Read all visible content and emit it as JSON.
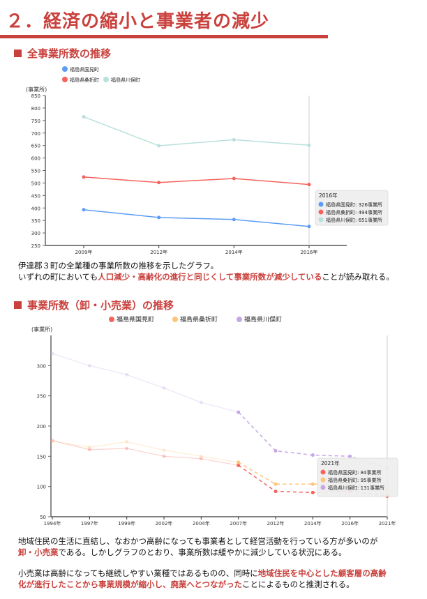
{
  "title": "２．経済の縮小と事業者の減少",
  "section1": {
    "heading": "全事業所数の推移",
    "para": [
      "伊達郡３町の全業種の事業所数の推移を示したグラフ。",
      "いずれの町においても",
      "人口減少・高齢化の進行と同じくして事業所数が減少している",
      "ことが読み取れる。"
    ]
  },
  "section2": {
    "heading": "事業所数（卸・小売業）の推移",
    "para1": [
      "地域住民の生活に直結し、なおかつ高齢になっても事業者として経営活動を行っている方が多いのが",
      "卸・小売業",
      "である。しかしグラフのとおり、事業所数は緩やかに減少している状況にある。"
    ],
    "para2": [
      "小売業は高齢になっても継続しやすい業種ではあるものの、同時に",
      "地域住民を中心とした顧客層の高齢",
      "化が進行したことから事業規模が縮小し、廃業へとつながった",
      "ことによるものと推測される。"
    ]
  },
  "chart_data": [
    {
      "type": "line",
      "ylabel": "(事業所)",
      "ylim": [
        250,
        850
      ],
      "yticks": [
        250,
        300,
        350,
        400,
        450,
        500,
        550,
        600,
        650,
        700,
        750,
        800,
        850
      ],
      "categories": [
        "2009年",
        "2012年",
        "2014年",
        "2016年"
      ],
      "series": [
        {
          "name": "福島県国見町",
          "color": "#5b9cf6",
          "values": [
            393,
            362,
            354,
            326
          ]
        },
        {
          "name": "福島県桑折町",
          "color": "#f7625c",
          "values": [
            524,
            502,
            518,
            494
          ]
        },
        {
          "name": "福島県川俣町",
          "color": "#b9e0dc",
          "values": [
            765,
            649,
            673,
            651
          ]
        }
      ],
      "tooltip": {
        "title": "2016年",
        "rows": [
          "福島県国見町: 326事業所",
          "福島県桑折町: 494事業所",
          "福島県川俣町: 651事業所"
        ]
      },
      "legend": "top-left"
    },
    {
      "type": "line",
      "ylabel": "(事業所)",
      "ylim": [
        50,
        350
      ],
      "yticks": [
        50,
        100,
        150,
        200,
        250,
        300
      ],
      "categories": [
        "1994年",
        "1997年",
        "1999年",
        "2002年",
        "2004年",
        "2007年",
        "2012年",
        "2014年",
        "2016年",
        "2021年"
      ],
      "series": [
        {
          "name": "福島県国見町",
          "color": "#f7625c",
          "values": [
            176,
            161,
            163,
            150,
            146,
            135,
            92,
            90,
            92,
            84
          ]
        },
        {
          "name": "福島県桑折町",
          "color": "#fdc47a",
          "values": [
            175,
            165,
            174,
            160,
            150,
            140,
            104,
            104,
            104,
            95
          ]
        },
        {
          "name": "福島県川俣町",
          "color": "#c4a8e6",
          "values": [
            320,
            300,
            285,
            263,
            239,
            223,
            159,
            152,
            150,
            131
          ]
        }
      ],
      "tooltip": {
        "title": "2021年",
        "rows": [
          "福島県国見町: 84事業所",
          "福島県桑折町: 95事業所",
          "福島県川俣町: 131事業所"
        ]
      },
      "legend": "top-center"
    }
  ]
}
